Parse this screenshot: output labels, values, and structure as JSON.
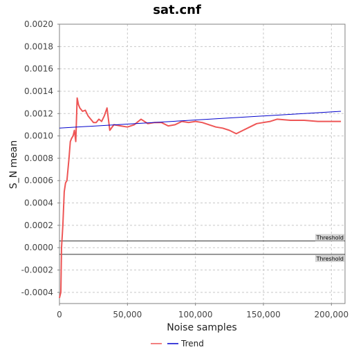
{
  "chart_data": {
    "type": "line",
    "title": "sat.cnf",
    "xlabel": "Noise samples",
    "ylabel": "S_N mean",
    "xlim": [
      0,
      210000
    ],
    "ylim": [
      -0.0005,
      0.002
    ],
    "x_ticks": [
      0,
      50000,
      100000,
      150000,
      200000
    ],
    "x_tick_labels": [
      "0",
      "50,000",
      "100,000",
      "150,000",
      "200,000"
    ],
    "y_ticks": [
      -0.0004,
      -0.0002,
      0.0,
      0.0002,
      0.0004,
      0.0006,
      0.0008,
      0.001,
      0.0012,
      0.0014,
      0.0016,
      0.0018,
      0.002
    ],
    "y_tick_labels": [
      "-0.0004",
      "-0.0002",
      "0.0000",
      "0.0002",
      "0.0004",
      "0.0006",
      "0.0008",
      "0.0010",
      "0.0012",
      "0.0014",
      "0.0016",
      "0.0018",
      "0.0020"
    ],
    "grid": true,
    "legend_position": "bottom",
    "series": [
      {
        "name": "",
        "color": "#ee5555",
        "x": [
          0,
          1000,
          1500,
          2500,
          3500,
          4500,
          5500,
          7000,
          8000,
          9000,
          10000,
          11000,
          12000,
          13000,
          14000,
          15000,
          17000,
          19000,
          21000,
          23000,
          25000,
          27000,
          29000,
          31000,
          33000,
          35000,
          37000,
          40000,
          45000,
          50000,
          55000,
          60000,
          65000,
          70000,
          75000,
          80000,
          85000,
          90000,
          95000,
          100000,
          105000,
          110000,
          115000,
          120000,
          125000,
          130000,
          135000,
          140000,
          145000,
          150000,
          155000,
          160000,
          170000,
          180000,
          190000,
          200000,
          207000
        ],
        "y": [
          -0.00045,
          -0.0004,
          0.0,
          0.0002,
          0.0005,
          0.00058,
          0.0006,
          0.0008,
          0.00095,
          0.00098,
          0.001,
          0.00105,
          0.00095,
          0.00134,
          0.00128,
          0.00125,
          0.00122,
          0.00123,
          0.00118,
          0.00115,
          0.00112,
          0.00112,
          0.00115,
          0.00113,
          0.00118,
          0.00125,
          0.00105,
          0.0011,
          0.00109,
          0.00108,
          0.0011,
          0.00115,
          0.00111,
          0.00112,
          0.00112,
          0.00109,
          0.0011,
          0.00113,
          0.00112,
          0.00113,
          0.00112,
          0.0011,
          0.00108,
          0.00107,
          0.00105,
          0.00102,
          0.00105,
          0.00108,
          0.00111,
          0.00112,
          0.00113,
          0.00115,
          0.00114,
          0.00114,
          0.00113,
          0.00113,
          0.00113
        ]
      },
      {
        "name": "Trend",
        "color": "#0000cc",
        "x": [
          0,
          207000
        ],
        "y": [
          0.00107,
          0.00122
        ]
      }
    ],
    "thresholds": [
      {
        "label": "Threshold",
        "value": 6e-05
      },
      {
        "label": "Threshold",
        "value": -6e-05
      }
    ]
  }
}
